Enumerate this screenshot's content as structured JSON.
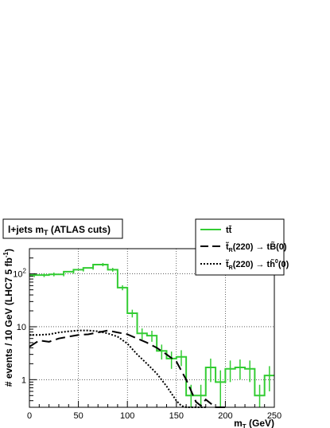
{
  "chart_data": {
    "type": "line",
    "title": "l+jets m_T (ATLAS cuts)",
    "xlabel": "m_T (GeV)",
    "ylabel": "# events / 10 GeV  (LHC7 5 fb^-1)",
    "xlim": [
      0,
      250
    ],
    "ylim": [
      0.3,
      300
    ],
    "yscale": "log",
    "grid": true,
    "legend_position": "top-right",
    "x_ticks": [
      "0",
      "50",
      "100",
      "150",
      "200",
      "250"
    ],
    "y_ticks": [
      "1",
      "10",
      "10^2"
    ],
    "series": [
      {
        "name": "tt̄",
        "style": "histogram",
        "color": "#33cc33",
        "bin_width": 5,
        "x": [
          0,
          5,
          10,
          15,
          20,
          25,
          30,
          35,
          40,
          45,
          50,
          55,
          60,
          65,
          70,
          75,
          80,
          85,
          90,
          95,
          100,
          105,
          110,
          115,
          120,
          125,
          130,
          135,
          140,
          145,
          150,
          155,
          160,
          165,
          170,
          175,
          180,
          185,
          190,
          195,
          200,
          205,
          210,
          215,
          220,
          225,
          230,
          235,
          240,
          245
        ],
        "values": [
          95,
          95,
          95,
          95,
          98,
          98,
          98,
          110,
          110,
          120,
          120,
          130,
          130,
          150,
          150,
          150,
          120,
          120,
          55,
          55,
          18,
          18,
          7.5,
          7.5,
          6.8,
          6.8,
          3.5,
          3.5,
          2.5,
          2.5,
          2.7,
          2.7,
          0.5,
          0.5,
          0.5,
          0.5,
          1.7,
          1.7,
          0.9,
          0.9,
          1.6,
          1.6,
          1.7,
          1.7,
          1.6,
          1.6,
          0.5,
          0.5,
          1.2,
          1.2
        ],
        "errors": [
          8,
          8,
          8,
          8,
          8,
          8,
          8,
          9,
          9,
          9,
          9,
          10,
          10,
          11,
          11,
          11,
          10,
          10,
          6,
          6,
          3,
          3,
          1.8,
          1.8,
          1.6,
          1.6,
          1.1,
          1.1,
          0.9,
          0.9,
          0.9,
          0.9,
          0.3,
          0.3,
          0.3,
          0.3,
          0.8,
          0.8,
          0.6,
          0.6,
          0.7,
          0.7,
          0.7,
          0.7,
          0.7,
          0.7,
          0.3,
          0.3,
          0.6,
          0.6
        ]
      },
      {
        "name": "t̃_R(220) → tB̃(0)",
        "style": "dashed",
        "color": "#000000",
        "x": [
          0,
          10,
          20,
          30,
          40,
          50,
          60,
          70,
          80,
          90,
          100,
          110,
          120,
          130,
          140,
          150,
          160,
          170,
          175,
          180,
          190,
          200
        ],
        "values": [
          4.2,
          5.5,
          5.2,
          6.0,
          6.5,
          7.0,
          7.2,
          7.8,
          8.5,
          7.8,
          7.2,
          6.0,
          5.0,
          4.0,
          3.0,
          2.2,
          1.0,
          0.38,
          0.32,
          0.42,
          0.3,
          0.3
        ]
      },
      {
        "name": "t̃_R(220) → th̃⁰(0)",
        "style": "dotted",
        "color": "#000000",
        "x": [
          0,
          10,
          20,
          30,
          40,
          50,
          60,
          70,
          80,
          90,
          100,
          110,
          120,
          130,
          140,
          150,
          155,
          160,
          170,
          180
        ],
        "values": [
          7.0,
          7.0,
          7.2,
          7.8,
          8.2,
          8.5,
          8.5,
          8.2,
          7.5,
          6.5,
          4.8,
          3.0,
          2.0,
          1.3,
          0.75,
          0.4,
          0.32,
          0.3,
          0.3,
          0.3
        ]
      }
    ]
  }
}
